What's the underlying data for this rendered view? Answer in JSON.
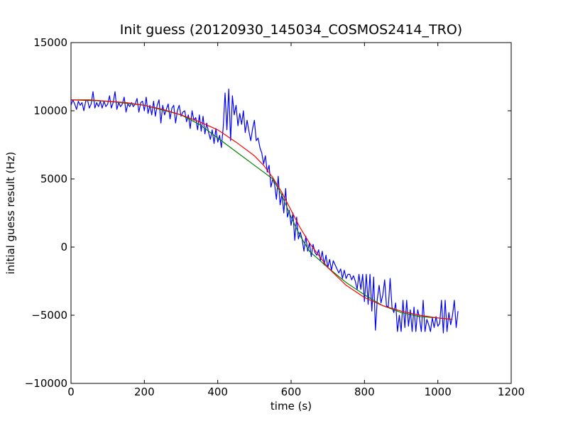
{
  "chart_data": {
    "type": "line",
    "title": "Init guess (20120930_145034_COSMOS2414_TRO)",
    "xlabel": "time (s)",
    "ylabel": "initial guess result (Hz)",
    "xlim": [
      0,
      1200
    ],
    "ylim": [
      -10000,
      15000
    ],
    "x_ticks": [
      0,
      200,
      400,
      600,
      800,
      1000,
      1200
    ],
    "y_ticks": [
      -10000,
      -5000,
      0,
      5000,
      10000,
      15000
    ],
    "x_tick_labels": [
      "0",
      "200",
      "400",
      "600",
      "800",
      "1000",
      "1200"
    ],
    "y_tick_labels": [
      "−10000",
      "−5000",
      "0",
      "5000",
      "10000",
      "15000"
    ],
    "grid": false,
    "legend": "none",
    "series": [
      {
        "color": "#0000ff",
        "points": [
          [
            0,
            10400
          ],
          [
            5,
            10800
          ],
          [
            10,
            10500
          ],
          [
            15,
            10100
          ],
          [
            20,
            10700
          ],
          [
            25,
            10400
          ],
          [
            30,
            10600
          ],
          [
            35,
            10000
          ],
          [
            40,
            10700
          ],
          [
            45,
            10800
          ],
          [
            50,
            10200
          ],
          [
            55,
            10500
          ],
          [
            60,
            11400
          ],
          [
            65,
            10200
          ],
          [
            70,
            10600
          ],
          [
            75,
            10300
          ],
          [
            80,
            10700
          ],
          [
            85,
            10200
          ],
          [
            90,
            10700
          ],
          [
            95,
            10300
          ],
          [
            100,
            10500
          ],
          [
            105,
            11100
          ],
          [
            110,
            10200
          ],
          [
            115,
            10600
          ],
          [
            120,
            11400
          ],
          [
            125,
            10100
          ],
          [
            130,
            10600
          ],
          [
            135,
            10300
          ],
          [
            140,
            10500
          ],
          [
            145,
            11000
          ],
          [
            150,
            9900
          ],
          [
            155,
            10500
          ],
          [
            160,
            10300
          ],
          [
            165,
            10600
          ],
          [
            170,
            10300
          ],
          [
            175,
            10500
          ],
          [
            180,
            10900
          ],
          [
            185,
            9900
          ],
          [
            190,
            10600
          ],
          [
            195,
            10700
          ],
          [
            200,
            10000
          ],
          [
            205,
            11000
          ],
          [
            210,
            9800
          ],
          [
            215,
            10400
          ],
          [
            220,
            9700
          ],
          [
            225,
            10700
          ],
          [
            230,
            9600
          ],
          [
            235,
            10400
          ],
          [
            240,
            10800
          ],
          [
            245,
            9100
          ],
          [
            250,
            10400
          ],
          [
            255,
            9700
          ],
          [
            260,
            10100
          ],
          [
            265,
            10500
          ],
          [
            270,
            9400
          ],
          [
            275,
            10200
          ],
          [
            280,
            10400
          ],
          [
            285,
            9100
          ],
          [
            290,
            10000
          ],
          [
            295,
            10400
          ],
          [
            300,
            9600
          ],
          [
            305,
            9900
          ],
          [
            310,
            10000
          ],
          [
            315,
            9200
          ],
          [
            320,
            9700
          ],
          [
            325,
            8700
          ],
          [
            330,
            10000
          ],
          [
            335,
            9300
          ],
          [
            340,
            9500
          ],
          [
            345,
            8600
          ],
          [
            350,
            9700
          ],
          [
            355,
            8500
          ],
          [
            360,
            9600
          ],
          [
            365,
            8300
          ],
          [
            370,
            9100
          ],
          [
            375,
            8400
          ],
          [
            380,
            7900
          ],
          [
            385,
            8600
          ],
          [
            390,
            7600
          ],
          [
            395,
            8700
          ],
          [
            400,
            7700
          ],
          [
            405,
            8200
          ],
          [
            410,
            7300
          ],
          [
            415,
            8800
          ],
          [
            420,
            11300
          ],
          [
            425,
            8600
          ],
          [
            430,
            11600
          ],
          [
            435,
            7800
          ],
          [
            440,
            11100
          ],
          [
            445,
            9700
          ],
          [
            450,
            10400
          ],
          [
            455,
            8900
          ],
          [
            460,
            9800
          ],
          [
            465,
            9000
          ],
          [
            470,
            10000
          ],
          [
            475,
            8400
          ],
          [
            480,
            9300
          ],
          [
            485,
            8500
          ],
          [
            490,
            7800
          ],
          [
            495,
            8700
          ],
          [
            500,
            9300
          ],
          [
            505,
            7800
          ],
          [
            510,
            8000
          ],
          [
            515,
            7300
          ],
          [
            520,
            6900
          ],
          [
            525,
            6100
          ],
          [
            530,
            6700
          ],
          [
            535,
            5500
          ],
          [
            540,
            6000
          ],
          [
            545,
            4400
          ],
          [
            550,
            5000
          ],
          [
            555,
            4600
          ],
          [
            560,
            3500
          ],
          [
            565,
            5200
          ],
          [
            570,
            3100
          ],
          [
            575,
            3900
          ],
          [
            580,
            2500
          ],
          [
            585,
            4300
          ],
          [
            590,
            2200
          ],
          [
            595,
            2700
          ],
          [
            600,
            1600
          ],
          [
            605,
            2500
          ],
          [
            610,
            500
          ],
          [
            615,
            2200
          ],
          [
            620,
            600
          ],
          [
            625,
            1100
          ],
          [
            630,
            600
          ],
          [
            635,
            -300
          ],
          [
            640,
            800
          ],
          [
            645,
            -300
          ],
          [
            650,
            300
          ],
          [
            655,
            -700
          ],
          [
            660,
            200
          ],
          [
            665,
            -400
          ],
          [
            670,
            -600
          ],
          [
            675,
            -200
          ],
          [
            680,
            -1000
          ],
          [
            685,
            -300
          ],
          [
            690,
            -1300
          ],
          [
            695,
            -600
          ],
          [
            700,
            -1500
          ],
          [
            705,
            -900
          ],
          [
            710,
            -1700
          ],
          [
            715,
            -1000
          ],
          [
            720,
            -1300
          ],
          [
            725,
            -1600
          ],
          [
            730,
            -1900
          ],
          [
            735,
            -1600
          ],
          [
            740,
            -2300
          ],
          [
            745,
            -1700
          ],
          [
            750,
            -2300
          ],
          [
            755,
            -2000
          ],
          [
            760,
            -2000
          ],
          [
            765,
            -2400
          ],
          [
            770,
            -2100
          ],
          [
            775,
            -2500
          ],
          [
            780,
            -3100
          ],
          [
            785,
            -2000
          ],
          [
            790,
            -3100
          ],
          [
            795,
            -2000
          ],
          [
            800,
            -4000
          ],
          [
            805,
            -2000
          ],
          [
            810,
            -4200
          ],
          [
            815,
            -2000
          ],
          [
            820,
            -4700
          ],
          [
            825,
            -2200
          ],
          [
            830,
            -6100
          ],
          [
            835,
            -3800
          ],
          [
            840,
            -2800
          ],
          [
            845,
            -4100
          ],
          [
            850,
            -3500
          ],
          [
            855,
            -2400
          ],
          [
            860,
            -4300
          ],
          [
            865,
            -4400
          ],
          [
            870,
            -2300
          ],
          [
            875,
            -4400
          ],
          [
            880,
            -4800
          ],
          [
            885,
            -4100
          ],
          [
            890,
            -6200
          ],
          [
            895,
            -5000
          ],
          [
            900,
            -6200
          ],
          [
            905,
            -3900
          ],
          [
            910,
            -5900
          ],
          [
            915,
            -3900
          ],
          [
            920,
            -5800
          ],
          [
            925,
            -4600
          ],
          [
            930,
            -6200
          ],
          [
            935,
            -4400
          ],
          [
            940,
            -6200
          ],
          [
            945,
            -4600
          ],
          [
            950,
            -5200
          ],
          [
            955,
            -6200
          ],
          [
            960,
            -3900
          ],
          [
            965,
            -6200
          ],
          [
            970,
            -5300
          ],
          [
            975,
            -5700
          ],
          [
            980,
            -6200
          ],
          [
            985,
            -5200
          ],
          [
            990,
            -5900
          ],
          [
            995,
            -5100
          ],
          [
            1000,
            -5800
          ],
          [
            1005,
            -5600
          ],
          [
            1010,
            -3900
          ],
          [
            1015,
            -6300
          ],
          [
            1020,
            -3900
          ],
          [
            1025,
            -6200
          ],
          [
            1030,
            -4800
          ],
          [
            1035,
            -5700
          ],
          [
            1040,
            -5000
          ],
          [
            1045,
            -3900
          ],
          [
            1050,
            -5900
          ],
          [
            1055,
            -4700
          ]
        ]
      },
      {
        "color": "#008000",
        "points": [
          [
            0,
            10800
          ],
          [
            100,
            10700
          ],
          [
            200,
            10400
          ],
          [
            300,
            9700
          ],
          [
            350,
            9000
          ],
          [
            400,
            8000
          ],
          [
            450,
            7000
          ],
          [
            500,
            6000
          ],
          [
            550,
            5000
          ],
          [
            575,
            3800
          ],
          [
            600,
            2200
          ],
          [
            625,
            800
          ],
          [
            650,
            -300
          ],
          [
            700,
            -1500
          ],
          [
            750,
            -2600
          ],
          [
            800,
            -3500
          ],
          [
            850,
            -4300
          ],
          [
            900,
            -4800
          ],
          [
            950,
            -5100
          ],
          [
            1000,
            -5200
          ],
          [
            1040,
            -5300
          ]
        ]
      },
      {
        "color": "#ff0000",
        "points": [
          [
            0,
            10800
          ],
          [
            50,
            10800
          ],
          [
            100,
            10700
          ],
          [
            150,
            10600
          ],
          [
            200,
            10400
          ],
          [
            250,
            10100
          ],
          [
            300,
            9700
          ],
          [
            350,
            9200
          ],
          [
            400,
            8600
          ],
          [
            450,
            7700
          ],
          [
            500,
            6700
          ],
          [
            525,
            6000
          ],
          [
            550,
            5100
          ],
          [
            575,
            4000
          ],
          [
            600,
            2700
          ],
          [
            625,
            1400
          ],
          [
            650,
            300
          ],
          [
            675,
            -600
          ],
          [
            700,
            -1500
          ],
          [
            750,
            -2800
          ],
          [
            800,
            -3700
          ],
          [
            850,
            -4300
          ],
          [
            900,
            -4700
          ],
          [
            950,
            -5000
          ],
          [
            1000,
            -5200
          ],
          [
            1040,
            -5300
          ]
        ]
      }
    ]
  }
}
